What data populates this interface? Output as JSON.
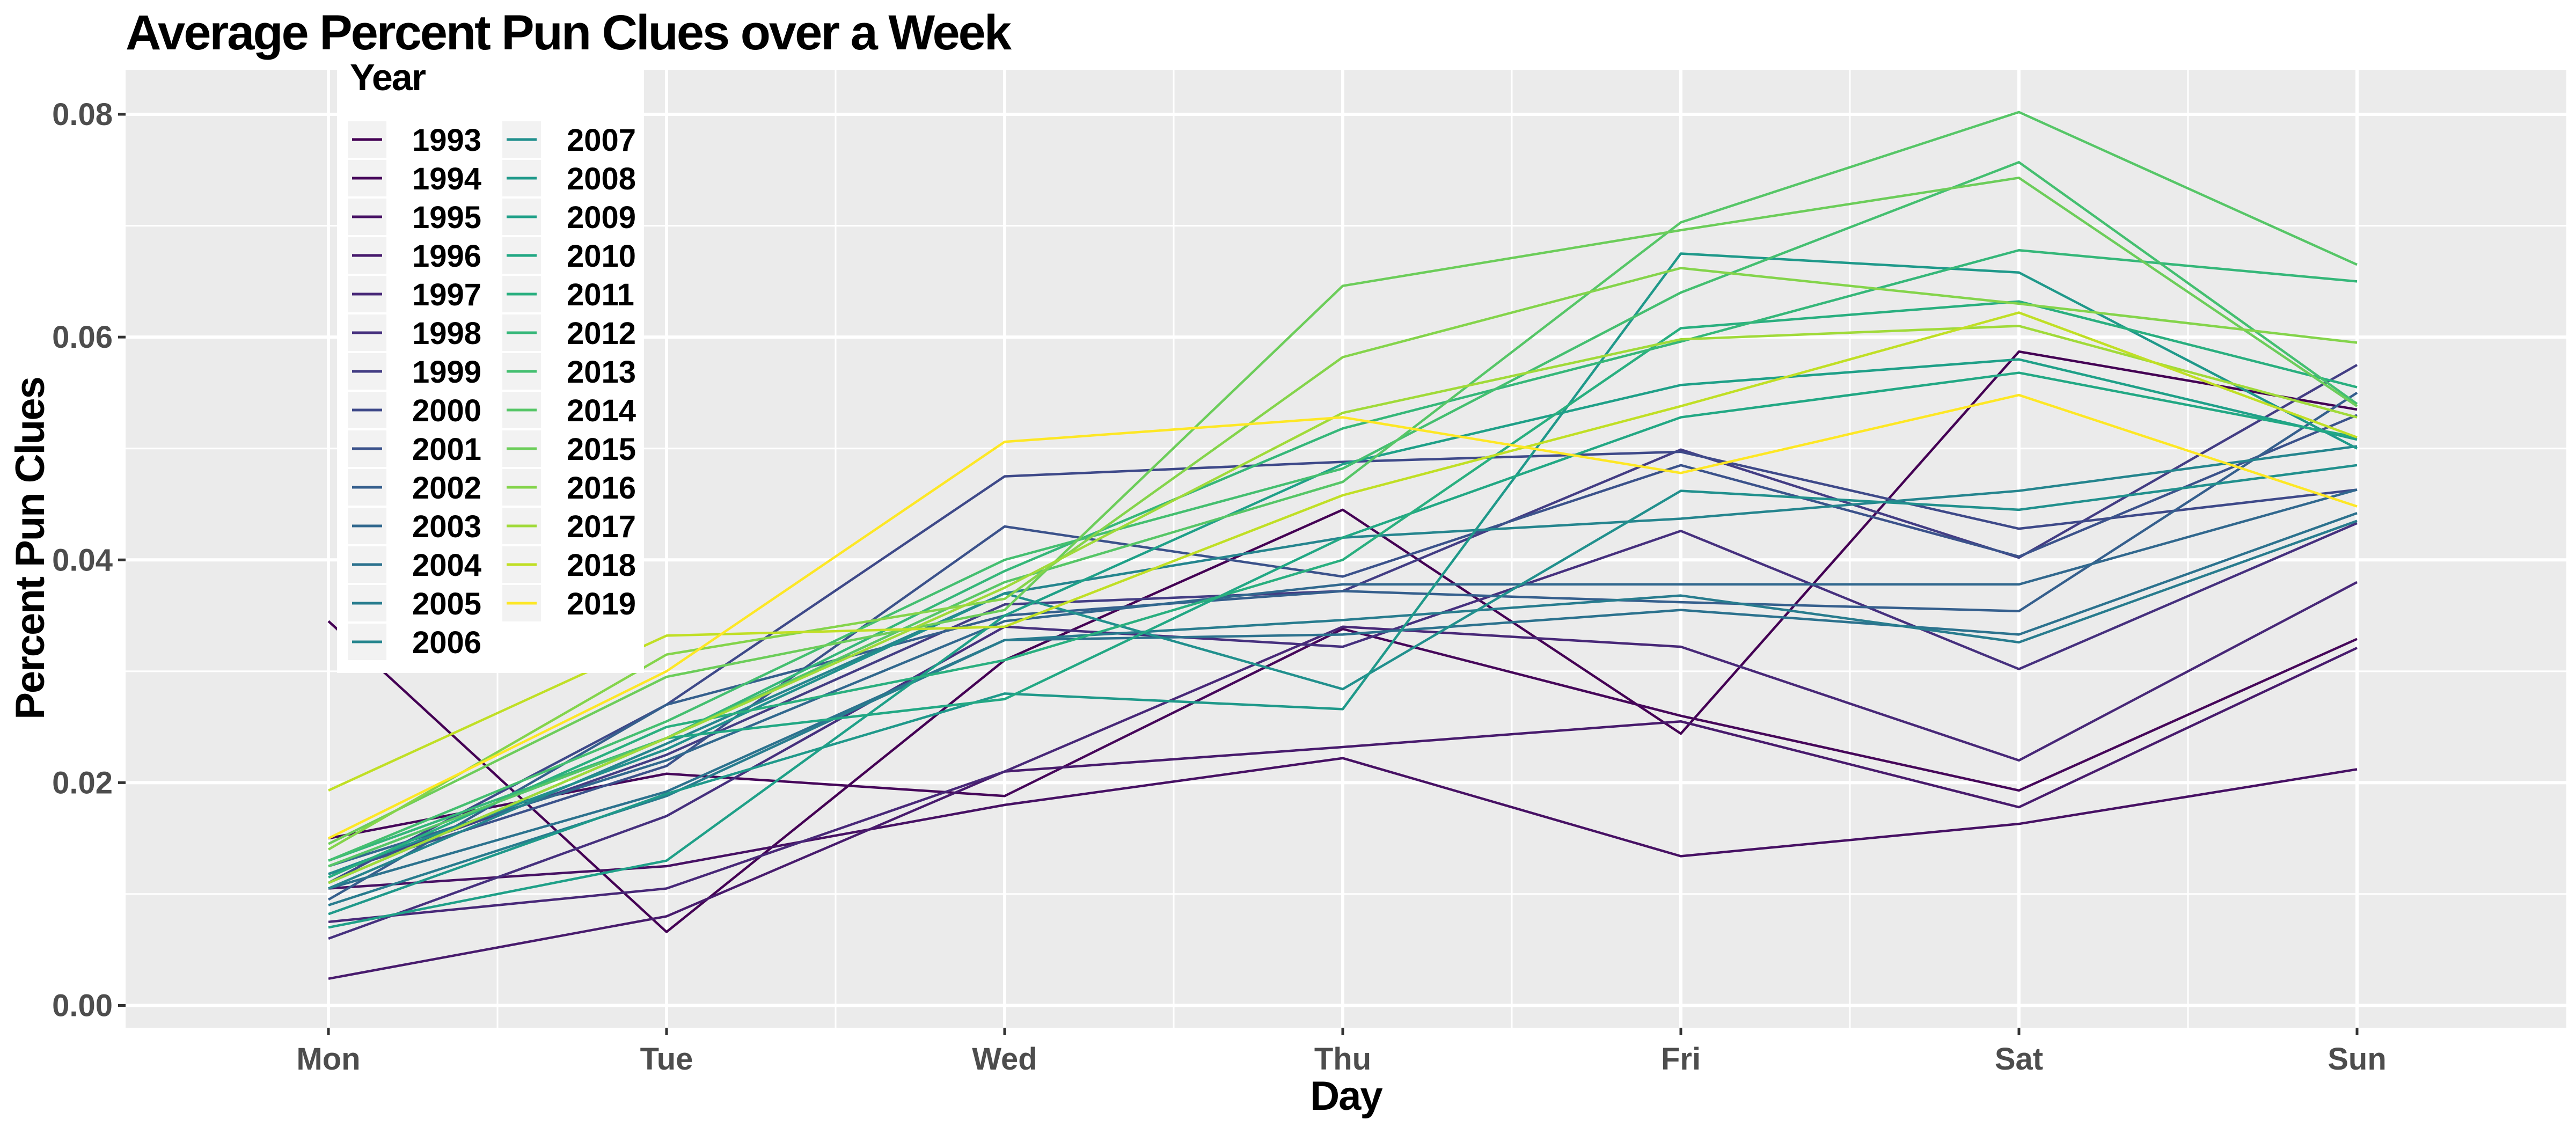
{
  "chart_data": {
    "type": "line",
    "title": "Average Percent Pun Clues over a Week",
    "xlabel": "Day",
    "ylabel": "Percent Pun Clues",
    "categories": [
      "Mon",
      "Tue",
      "Wed",
      "Thu",
      "Fri",
      "Sat",
      "Sun"
    ],
    "ylim": [
      -0.002,
      0.084
    ],
    "yticks": [
      0.0,
      0.02,
      0.04,
      0.06,
      0.08
    ],
    "ytick_labels": [
      "0.00",
      "0.02",
      "0.04",
      "0.06",
      "0.08"
    ],
    "grid": true,
    "legend": {
      "title": "Year",
      "placement": "top-left, inside plot"
    },
    "background": "#ebebeb",
    "gridline_color": "#ffffff",
    "series": [
      {
        "name": "1993",
        "color": "#440154",
        "values": [
          0.0345,
          0.0066,
          0.031,
          0.0445,
          0.0244,
          0.0587,
          0.0535
        ]
      },
      {
        "name": "1994",
        "color": "#46075a",
        "values": [
          0.015,
          0.0208,
          0.0188,
          0.0338,
          0.026,
          0.0193,
          0.0329
        ]
      },
      {
        "name": "1995",
        "color": "#471164",
        "values": [
          0.0105,
          0.0125,
          0.018,
          0.0222,
          0.0134,
          0.0163,
          0.0212
        ]
      },
      {
        "name": "1996",
        "color": "#481b6d",
        "values": [
          0.0024,
          0.008,
          0.021,
          0.0232,
          0.0255,
          0.0178,
          0.0321
        ]
      },
      {
        "name": "1997",
        "color": "#482878",
        "values": [
          0.0075,
          0.0105,
          0.021,
          0.034,
          0.0322,
          0.022,
          0.038
        ]
      },
      {
        "name": "1998",
        "color": "#46307e",
        "values": [
          0.006,
          0.017,
          0.034,
          0.0322,
          0.0426,
          0.0302,
          0.0433
        ]
      },
      {
        "name": "1999",
        "color": "#433d84",
        "values": [
          0.0118,
          0.0225,
          0.036,
          0.0372,
          0.0499,
          0.0402,
          0.0575
        ]
      },
      {
        "name": "2000",
        "color": "#3e4989",
        "values": [
          0.011,
          0.027,
          0.0475,
          0.0488,
          0.0497,
          0.0428,
          0.0463
        ]
      },
      {
        "name": "2001",
        "color": "#3b528b",
        "values": [
          0.0118,
          0.0215,
          0.043,
          0.0385,
          0.0485,
          0.0403,
          0.053
        ]
      },
      {
        "name": "2002",
        "color": "#355f8d",
        "values": [
          0.0095,
          0.027,
          0.035,
          0.0372,
          0.0362,
          0.0354,
          0.055
        ]
      },
      {
        "name": "2003",
        "color": "#31688e",
        "values": [
          0.0125,
          0.022,
          0.0345,
          0.0378,
          0.0378,
          0.0378,
          0.0463
        ]
      },
      {
        "name": "2004",
        "color": "#2c728e",
        "values": [
          0.0105,
          0.0192,
          0.0328,
          0.0333,
          0.0355,
          0.0333,
          0.0442
        ]
      },
      {
        "name": "2005",
        "color": "#287c8e",
        "values": [
          0.009,
          0.0188,
          0.0328,
          0.0346,
          0.0368,
          0.0326,
          0.0435
        ]
      },
      {
        "name": "2006",
        "color": "#25858e",
        "values": [
          0.0105,
          0.0235,
          0.037,
          0.042,
          0.0437,
          0.0462,
          0.0502
        ]
      },
      {
        "name": "2007",
        "color": "#21908d",
        "values": [
          0.0118,
          0.023,
          0.037,
          0.0284,
          0.0462,
          0.0445,
          0.0485
        ]
      },
      {
        "name": "2008",
        "color": "#1f998a",
        "values": [
          0.0082,
          0.019,
          0.028,
          0.0266,
          0.0675,
          0.0658,
          0.05
        ]
      },
      {
        "name": "2009",
        "color": "#1fa088",
        "values": [
          0.007,
          0.013,
          0.035,
          0.0486,
          0.0557,
          0.058,
          0.0508
        ]
      },
      {
        "name": "2010",
        "color": "#22a884",
        "values": [
          0.011,
          0.024,
          0.0275,
          0.042,
          0.0528,
          0.0568,
          0.051
        ]
      },
      {
        "name": "2011",
        "color": "#29af7f",
        "values": [
          0.0115,
          0.025,
          0.031,
          0.04,
          0.0608,
          0.0632,
          0.0555
        ]
      },
      {
        "name": "2012",
        "color": "#35b779",
        "values": [
          0.013,
          0.024,
          0.039,
          0.0518,
          0.0596,
          0.0678,
          0.065
        ]
      },
      {
        "name": "2013",
        "color": "#44bf70",
        "values": [
          0.013,
          0.0255,
          0.04,
          0.0482,
          0.064,
          0.0757,
          0.054
        ]
      },
      {
        "name": "2014",
        "color": "#56c667",
        "values": [
          0.0125,
          0.024,
          0.038,
          0.047,
          0.0703,
          0.0802,
          0.0665
        ]
      },
      {
        "name": "2015",
        "color": "#6ccd5a",
        "values": [
          0.0145,
          0.0295,
          0.0355,
          0.0646,
          0.0696,
          0.0743,
          0.0538
        ]
      },
      {
        "name": "2016",
        "color": "#84d44b",
        "values": [
          0.014,
          0.0315,
          0.0365,
          0.0582,
          0.0662,
          0.063,
          0.0595
        ]
      },
      {
        "name": "2017",
        "color": "#a0da39",
        "values": [
          0.011,
          0.024,
          0.0375,
          0.0532,
          0.0598,
          0.061,
          0.0528
        ]
      },
      {
        "name": "2018",
        "color": "#c0df25",
        "values": [
          0.0193,
          0.0332,
          0.034,
          0.0458,
          0.0538,
          0.0622,
          0.051
        ]
      },
      {
        "name": "2019",
        "color": "#fde725",
        "values": [
          0.015,
          0.03,
          0.0506,
          0.0528,
          0.0478,
          0.0548,
          0.0448
        ]
      }
    ]
  }
}
